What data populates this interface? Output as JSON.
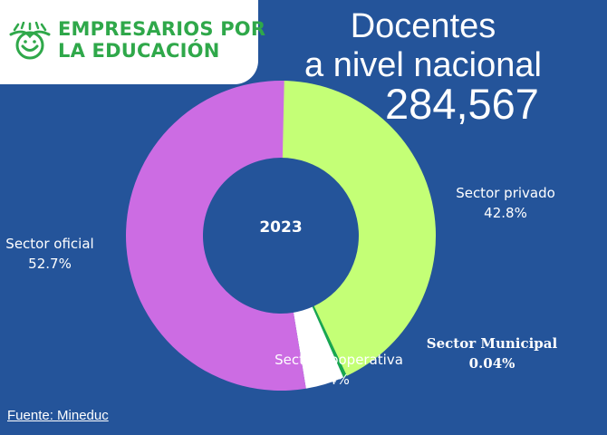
{
  "header": {
    "logo_line1": "EMPRESARIOS POR",
    "logo_line2": "LA EDUCACIÓN",
    "logo_icon": "smiling-book-icon",
    "title_line1": "Docentes",
    "title_line2": "a nivel nacional",
    "total": "284,567"
  },
  "chart_data": {
    "type": "pie",
    "center_label": "2023",
    "slices": [
      {
        "name": "Sector privado",
        "value": 42.8,
        "label": "42.8%",
        "color": "#c4ff76"
      },
      {
        "name": "Sector Municipal",
        "value": 0.04,
        "label": "0.04%",
        "color": "#18a84e"
      },
      {
        "name": "Sector cooperativa",
        "value": 4,
        "label": "4%",
        "color": "#ffffff"
      },
      {
        "name": "Sector oficial",
        "value": 52.7,
        "label": "52.7%",
        "color": "#cc6ce3"
      }
    ]
  },
  "footer": {
    "source": "Fuente: Mineduc"
  },
  "colors": {
    "background": "#24549a",
    "logo_green": "#2fa84a"
  }
}
